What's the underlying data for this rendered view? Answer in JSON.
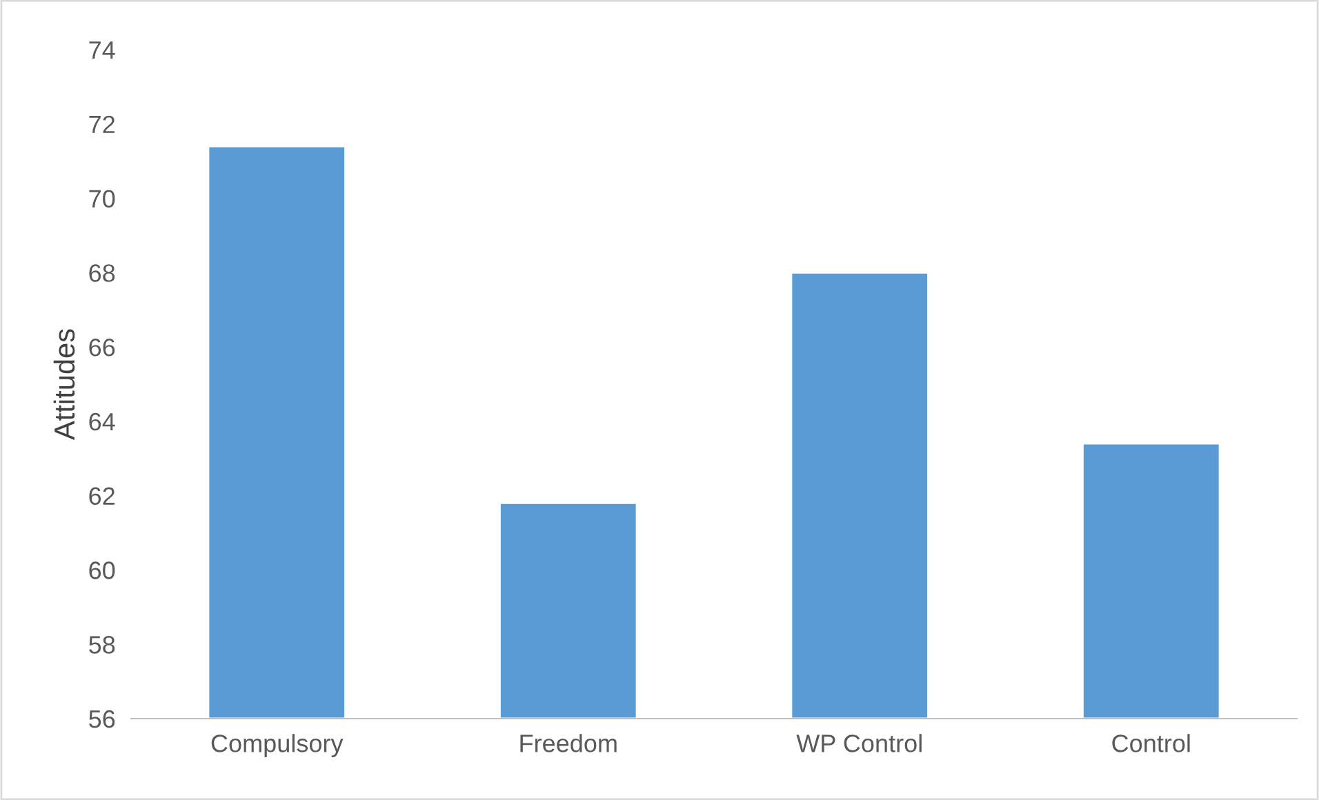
{
  "chart_data": {
    "type": "bar",
    "ylabel": "Attitudes",
    "categories": [
      "Compulsory",
      "Freedom",
      "WP Control",
      "Control"
    ],
    "values": [
      71.4,
      61.8,
      68.0,
      63.4
    ],
    "color": "#5b9bd5",
    "ylim": [
      56,
      74
    ],
    "yticks": [
      56,
      58,
      60,
      62,
      64,
      66,
      68,
      70,
      72,
      74
    ],
    "grid": false
  }
}
